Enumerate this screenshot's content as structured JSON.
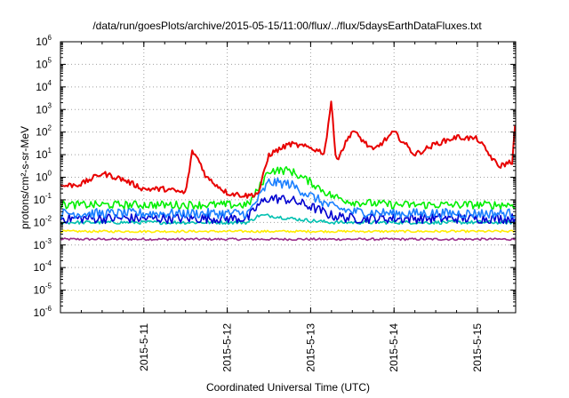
{
  "chart_data": {
    "type": "line",
    "title": "/data/run/goesPlots/archive/2015-05-15/11:00/flux/../flux/5daysEarthDataFluxes.txt",
    "xlabel": "Coordinated Universal Time (UTC)",
    "ylabel": "protons/cm²-s-sr-MeV",
    "yscale": "log",
    "ylim": [
      1e-06,
      1000000.0
    ],
    "xlim": [
      "2015-05-10 00:00",
      "2015-05-15 11:00"
    ],
    "grid": true,
    "x_tick_labels": [
      "2015-5-11",
      "2015-5-12",
      "2015-5-13",
      "2015-5-14",
      "2015-5-15"
    ],
    "y_ticks": [
      {
        "base": "10",
        "exp": "6"
      },
      {
        "base": "10",
        "exp": "5"
      },
      {
        "base": "10",
        "exp": "4"
      },
      {
        "base": "10",
        "exp": "3"
      },
      {
        "base": "10",
        "exp": "2"
      },
      {
        "base": "10",
        "exp": "1"
      },
      {
        "base": "10",
        "exp": "0"
      },
      {
        "base": "10",
        "exp": "-1"
      },
      {
        "base": "10",
        "exp": "-2"
      },
      {
        "base": "10",
        "exp": "-3"
      },
      {
        "base": "10",
        "exp": "-4"
      },
      {
        "base": "10",
        "exp": "-5"
      },
      {
        "base": "10",
        "exp": "-6"
      }
    ],
    "series": [
      {
        "color": "#e80000",
        "x": [
          "2015-05-10 00:00",
          "2015-05-10 06:00",
          "2015-05-10 12:00",
          "2015-05-10 18:00",
          "2015-05-11 00:00",
          "2015-05-11 06:00",
          "2015-05-11 12:00",
          "2015-05-11 14:00",
          "2015-05-11 16:00",
          "2015-05-11 18:00",
          "2015-05-12 00:00",
          "2015-05-12 06:00",
          "2015-05-12 09:00",
          "2015-05-12 12:00",
          "2015-05-12 18:00",
          "2015-05-13 00:00",
          "2015-05-13 04:00",
          "2015-05-13 06:00",
          "2015-05-13 07:00",
          "2015-05-13 08:00",
          "2015-05-13 12:00",
          "2015-05-13 18:00",
          "2015-05-14 00:00",
          "2015-05-14 06:00",
          "2015-05-14 12:00",
          "2015-05-14 18:00",
          "2015-05-15 00:00",
          "2015-05-15 06:00",
          "2015-05-15 10:00",
          "2015-05-15 11:00"
        ],
        "values": [
          0.4,
          0.5,
          1.5,
          0.8,
          0.3,
          0.3,
          0.2,
          15,
          5,
          1,
          0.2,
          0.15,
          0.2,
          10,
          30,
          20,
          12,
          3000,
          10,
          8,
          120,
          15,
          100,
          10,
          30,
          60,
          50,
          3,
          5,
          350
        ]
      },
      {
        "color": "#00ee00",
        "x": [
          "2015-05-10 00:00",
          "2015-05-11 00:00",
          "2015-05-12 00:00",
          "2015-05-12 06:00",
          "2015-05-12 09:00",
          "2015-05-12 12:00",
          "2015-05-12 18:00",
          "2015-05-13 00:00",
          "2015-05-13 06:00",
          "2015-05-13 12:00",
          "2015-05-14 00:00",
          "2015-05-15 00:00",
          "2015-05-15 11:00"
        ],
        "values": [
          0.06,
          0.06,
          0.06,
          0.06,
          0.3,
          2.0,
          2.0,
          0.6,
          0.15,
          0.08,
          0.06,
          0.06,
          0.06
        ]
      },
      {
        "color": "#1a7fff",
        "x": [
          "2015-05-10 00:00",
          "2015-05-11 00:00",
          "2015-05-12 00:00",
          "2015-05-12 06:00",
          "2015-05-12 09:00",
          "2015-05-12 12:00",
          "2015-05-12 18:00",
          "2015-05-13 00:00",
          "2015-05-13 06:00",
          "2015-05-13 12:00",
          "2015-05-14 00:00",
          "2015-05-15 00:00",
          "2015-05-15 11:00"
        ],
        "values": [
          0.025,
          0.025,
          0.025,
          0.025,
          0.12,
          0.6,
          0.5,
          0.15,
          0.05,
          0.03,
          0.025,
          0.025,
          0.025
        ]
      },
      {
        "color": "#0000d0",
        "x": [
          "2015-05-10 00:00",
          "2015-05-11 00:00",
          "2015-05-12 00:00",
          "2015-05-12 06:00",
          "2015-05-12 09:00",
          "2015-05-12 12:00",
          "2015-05-12 18:00",
          "2015-05-13 00:00",
          "2015-05-13 06:00",
          "2015-05-13 12:00",
          "2015-05-14 00:00",
          "2015-05-15 00:00",
          "2015-05-15 11:00"
        ],
        "values": [
          0.015,
          0.015,
          0.015,
          0.015,
          0.06,
          0.12,
          0.1,
          0.05,
          0.02,
          0.015,
          0.015,
          0.015,
          0.015
        ]
      },
      {
        "color": "#00c0b0",
        "x": [
          "2015-05-10 00:00",
          "2015-05-11 00:00",
          "2015-05-12 00:00",
          "2015-05-12 06:00",
          "2015-05-12 09:00",
          "2015-05-12 12:00",
          "2015-05-12 18:00",
          "2015-05-13 00:00",
          "2015-05-13 06:00",
          "2015-05-14 00:00",
          "2015-05-15 00:00",
          "2015-05-15 11:00"
        ],
        "values": [
          0.01,
          0.01,
          0.01,
          0.01,
          0.02,
          0.02,
          0.015,
          0.012,
          0.01,
          0.01,
          0.01,
          0.01
        ]
      },
      {
        "color": "#ffee00",
        "x": [
          "2015-05-10 00:00",
          "2015-05-11 00:00",
          "2015-05-12 00:00",
          "2015-05-13 00:00",
          "2015-05-14 00:00",
          "2015-05-15 00:00",
          "2015-05-15 11:00"
        ],
        "values": [
          0.004,
          0.004,
          0.004,
          0.004,
          0.004,
          0.004,
          0.004
        ]
      },
      {
        "color": "#9a2c8a",
        "x": [
          "2015-05-10 00:00",
          "2015-05-11 00:00",
          "2015-05-12 00:00",
          "2015-05-13 00:00",
          "2015-05-14 00:00",
          "2015-05-15 00:00",
          "2015-05-15 11:00"
        ],
        "values": [
          0.0018,
          0.0018,
          0.0018,
          0.0018,
          0.0018,
          0.0018,
          0.0018
        ]
      }
    ]
  }
}
